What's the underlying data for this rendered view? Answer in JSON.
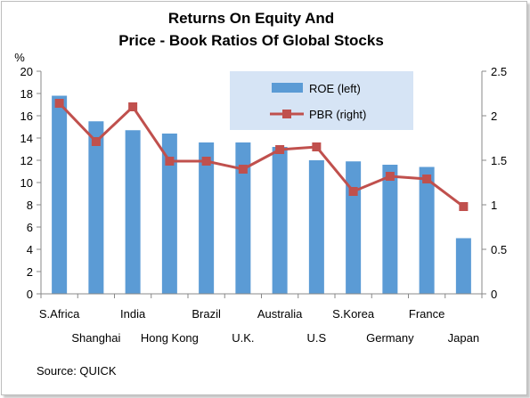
{
  "chart_data": {
    "type": "bar",
    "title_lines": [
      "Returns On Equity And",
      "Price - Book Ratios Of Global Stocks"
    ],
    "ylabel": "%",
    "categories": [
      "S.Africa",
      "Shanghai",
      "India",
      "Hong Kong",
      "Brazil",
      "U.K.",
      "Australia",
      "U.S",
      "S.Korea",
      "Germany",
      "France",
      "Japan"
    ],
    "series": [
      {
        "name": "ROE (left)",
        "type": "bar",
        "axis": "left",
        "color": "#5b9bd5",
        "values": [
          17.8,
          15.5,
          14.7,
          14.4,
          13.6,
          13.6,
          13.2,
          12.0,
          11.9,
          11.6,
          11.4,
          5.0
        ]
      },
      {
        "name": "PBR (right)",
        "type": "line",
        "axis": "right",
        "color": "#c0504d",
        "values": [
          2.14,
          1.71,
          2.1,
          1.49,
          1.49,
          1.4,
          1.62,
          1.65,
          1.15,
          1.32,
          1.29,
          0.98
        ]
      }
    ],
    "y_left": {
      "min": 0,
      "max": 20,
      "step": 2,
      "ticks": [
        "0",
        "2",
        "4",
        "6",
        "8",
        "10",
        "12",
        "14",
        "16",
        "18",
        "20"
      ]
    },
    "y_right": {
      "min": 0,
      "max": 2.5,
      "step": 0.5,
      "ticks": [
        "0",
        "0.5",
        "1",
        "1.5",
        "2",
        "2.5"
      ]
    },
    "legend_position": "top-right",
    "grid": false
  },
  "source": "Source: QUICK"
}
